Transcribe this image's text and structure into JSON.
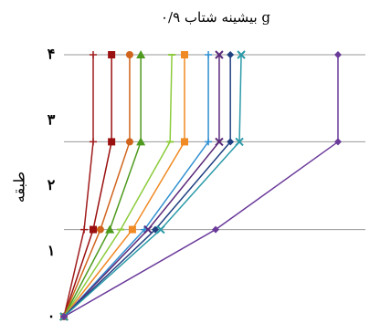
{
  "chart_data": {
    "type": "line",
    "title": "بیشینه شتاب ۰/۹ g",
    "y_label": "طبقه",
    "ylim": [
      0,
      4
    ],
    "yticks": [
      {
        "value": 0,
        "label": "۰"
      },
      {
        "value": 1,
        "label": "۱"
      },
      {
        "value": 2,
        "label": "۲"
      },
      {
        "value": 3,
        "label": "۳"
      },
      {
        "value": 4,
        "label": "۴"
      }
    ],
    "grid_y": [
      1.33,
      2.67,
      4
    ],
    "xlim": [
      0,
      100
    ],
    "y": [
      0,
      1.33,
      2.67,
      4
    ],
    "series": [
      {
        "color": "#a01c1c",
        "marker": "plus",
        "x": [
          0,
          6.7,
          9.7,
          9.7
        ]
      },
      {
        "color": "#9b1010",
        "marker": "square",
        "x": [
          0,
          9.7,
          15.8,
          15.8
        ]
      },
      {
        "color": "#d0641c",
        "marker": "circle",
        "x": [
          0,
          12.1,
          21.8,
          21.8
        ]
      },
      {
        "color": "#4e9a1e",
        "marker": "triangle",
        "x": [
          0,
          15.2,
          25.5,
          25.5
        ]
      },
      {
        "color": "#8ccb3c",
        "marker": "dash",
        "x": [
          0,
          18.8,
          35.2,
          35.8
        ]
      },
      {
        "color": "#f08a24",
        "marker": "square",
        "x": [
          0,
          22.7,
          40,
          40
        ]
      },
      {
        "color": "#2f8fd0",
        "marker": "plus",
        "x": [
          0,
          26.7,
          47.9,
          47.9
        ]
      },
      {
        "color": "#5a2a7a",
        "marker": "x",
        "x": [
          0,
          27.9,
          51.5,
          51.5
        ]
      },
      {
        "color": "#1f3f80",
        "marker": "diamond",
        "x": [
          0,
          30.3,
          55.2,
          55.2
        ]
      },
      {
        "color": "#2b9aa8",
        "marker": "x",
        "x": [
          0,
          32.1,
          58.2,
          58.8
        ]
      },
      {
        "color": "#6a3a9a",
        "marker": "diamond",
        "x": [
          0,
          50.3,
          90.9,
          90.9
        ]
      }
    ]
  }
}
